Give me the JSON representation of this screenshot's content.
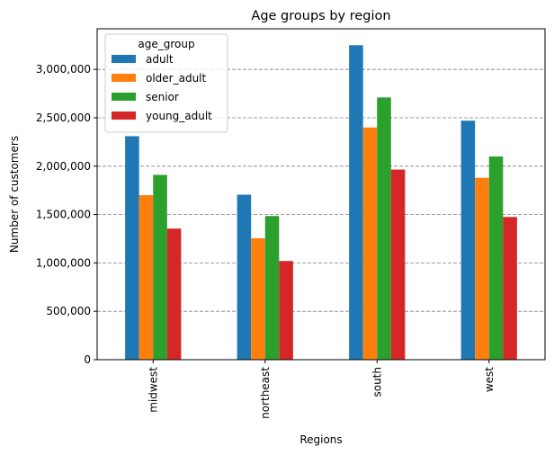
{
  "chart_data": {
    "type": "bar",
    "title": "Age groups by region",
    "xlabel": "Regions",
    "ylabel": "Number of customers",
    "categories": [
      "midwest",
      "northeast",
      "south",
      "west"
    ],
    "series": [
      {
        "name": "adult",
        "color": "#1f77b4",
        "values": [
          2310000,
          1705000,
          3250000,
          2470000
        ]
      },
      {
        "name": "older_adult",
        "color": "#ff7f0e",
        "values": [
          1700000,
          1255000,
          2400000,
          1880000
        ]
      },
      {
        "name": "senior",
        "color": "#2ca02c",
        "values": [
          1910000,
          1485000,
          2710000,
          2100000
        ]
      },
      {
        "name": "young_adult",
        "color": "#d62728",
        "values": [
          1355000,
          1020000,
          1965000,
          1475000
        ]
      }
    ],
    "ylim": [
      0,
      3420000
    ],
    "yticks": [
      0,
      500000,
      1000000,
      1500000,
      2000000,
      2500000,
      3000000
    ],
    "ytick_labels": [
      "0",
      "500,000",
      "1,000,000",
      "1,500,000",
      "2,000,000",
      "2,500,000",
      "3,000,000"
    ],
    "grid": "horizontal dashed",
    "legend": {
      "title": "age_group",
      "placement": "upper-left"
    },
    "x_tick_rotation": "vertical"
  }
}
